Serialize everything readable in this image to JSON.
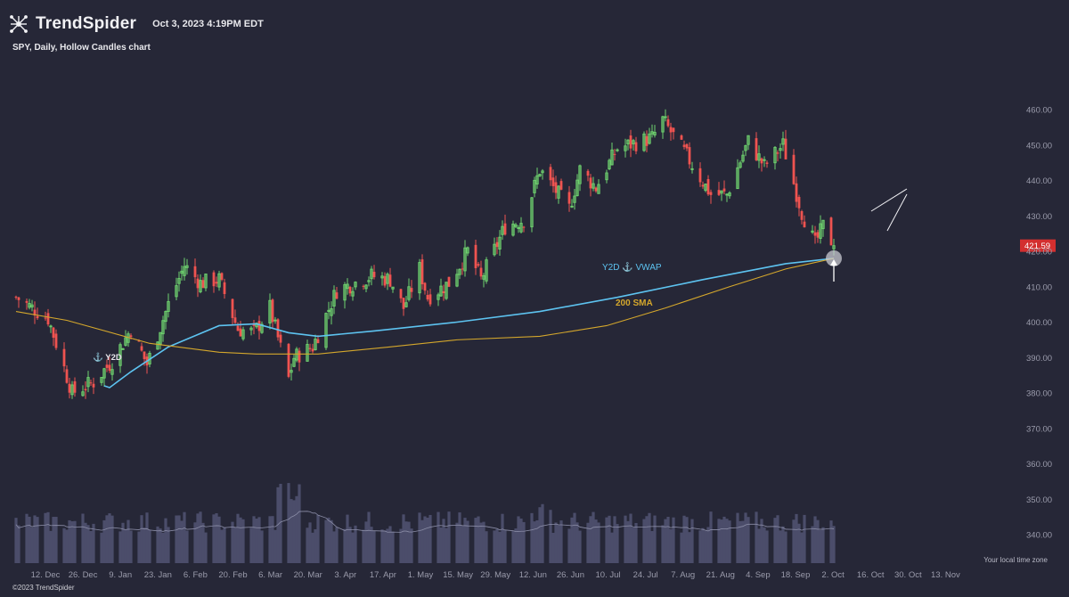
{
  "header": {
    "brand": "TrendSpider",
    "timestamp": "Oct 3, 2023 4:19PM EDT",
    "logo_icon": "spider-logo-icon"
  },
  "chart_title": "SPY, Daily, Hollow Candles chart",
  "footer": {
    "copyright": "©2023 TrendSpider",
    "timezone_note": "Your local time zone"
  },
  "chart_data": {
    "type": "candlestick",
    "symbol": "SPY",
    "timeframe": "Daily",
    "style": "Hollow Candles",
    "y_ticks": [
      460,
      450,
      440,
      430,
      420,
      410,
      400,
      390,
      380,
      370,
      360,
      350,
      340
    ],
    "ylim": [
      335,
      464
    ],
    "x_ticks": [
      "12. Dec",
      "26. Dec",
      "9. Jan",
      "23. Jan",
      "6. Feb",
      "20. Feb",
      "6. Mar",
      "20. Mar",
      "3. Apr",
      "17. Apr",
      "1. May",
      "15. May",
      "29. May",
      "12. Jun",
      "26. Jun",
      "10. Jul",
      "24. Jul",
      "7. Aug",
      "21. Aug",
      "4. Sep",
      "18. Sep",
      "2. Oct",
      "16. Oct",
      "30. Oct",
      "13. Nov"
    ],
    "last_price": "421.59",
    "last_price_color": "#d32f2f",
    "bull_color": "#6fd36f",
    "bear_color": "#ef5350",
    "close_anchors": [
      {
        "date": "2022-12-01",
        "close": 407
      },
      {
        "date": "2022-12-13",
        "close": 401
      },
      {
        "date": "2022-12-22",
        "close": 380
      },
      {
        "date": "2022-12-30",
        "close": 383
      },
      {
        "date": "2023-01-06",
        "close": 389
      },
      {
        "date": "2023-01-13",
        "close": 398
      },
      {
        "date": "2023-01-19",
        "close": 388
      },
      {
        "date": "2023-01-27",
        "close": 405
      },
      {
        "date": "2023-02-02",
        "close": 416
      },
      {
        "date": "2023-02-08",
        "close": 411
      },
      {
        "date": "2023-02-15",
        "close": 412
      },
      {
        "date": "2023-02-22",
        "close": 398
      },
      {
        "date": "2023-02-28",
        "close": 397
      },
      {
        "date": "2023-03-06",
        "close": 404
      },
      {
        "date": "2023-03-13",
        "close": 384
      },
      {
        "date": "2023-03-15",
        "close": 390
      },
      {
        "date": "2023-03-22",
        "close": 393
      },
      {
        "date": "2023-03-31",
        "close": 409
      },
      {
        "date": "2023-04-13",
        "close": 413
      },
      {
        "date": "2023-04-20",
        "close": 412
      },
      {
        "date": "2023-04-25",
        "close": 404
      },
      {
        "date": "2023-05-01",
        "close": 415
      },
      {
        "date": "2023-05-04",
        "close": 407
      },
      {
        "date": "2023-05-12",
        "close": 411
      },
      {
        "date": "2023-05-19",
        "close": 420
      },
      {
        "date": "2023-05-24",
        "close": 412
      },
      {
        "date": "2023-06-02",
        "close": 427
      },
      {
        "date": "2023-06-09",
        "close": 429
      },
      {
        "date": "2023-06-15",
        "close": 443
      },
      {
        "date": "2023-06-26",
        "close": 432
      },
      {
        "date": "2023-06-30",
        "close": 443
      },
      {
        "date": "2023-07-06",
        "close": 438
      },
      {
        "date": "2023-07-14",
        "close": 449
      },
      {
        "date": "2023-07-27",
        "close": 452
      },
      {
        "date": "2023-07-31",
        "close": 457
      },
      {
        "date": "2023-08-08",
        "close": 448
      },
      {
        "date": "2023-08-18",
        "close": 436
      },
      {
        "date": "2023-08-24",
        "close": 436
      },
      {
        "date": "2023-09-01",
        "close": 451
      },
      {
        "date": "2023-09-07",
        "close": 444
      },
      {
        "date": "2023-09-14",
        "close": 450
      },
      {
        "date": "2023-09-21",
        "close": 431
      },
      {
        "date": "2023-09-26",
        "close": 422
      },
      {
        "date": "2023-09-29",
        "close": 427
      },
      {
        "date": "2023-10-03",
        "close": 421.59
      }
    ],
    "series": [
      {
        "name": "Y2D ⚓ VWAP",
        "color": "#5dc3f0",
        "label": "Y2D ⚓ VWAP",
        "points": [
          {
            "date": "2023-01-03",
            "value": 382
          },
          {
            "date": "2023-01-05",
            "value": 381.5
          },
          {
            "date": "2023-01-13",
            "value": 386
          },
          {
            "date": "2023-01-27",
            "value": 393
          },
          {
            "date": "2023-02-15",
            "value": 399
          },
          {
            "date": "2023-03-01",
            "value": 399.5
          },
          {
            "date": "2023-03-13",
            "value": 397
          },
          {
            "date": "2023-03-24",
            "value": 396
          },
          {
            "date": "2023-04-14",
            "value": 397.5
          },
          {
            "date": "2023-05-15",
            "value": 400
          },
          {
            "date": "2023-06-15",
            "value": 403
          },
          {
            "date": "2023-07-14",
            "value": 407
          },
          {
            "date": "2023-08-15",
            "value": 412
          },
          {
            "date": "2023-09-15",
            "value": 416.5
          },
          {
            "date": "2023-10-03",
            "value": 418
          }
        ]
      },
      {
        "name": "200 SMA",
        "color": "#d4a72c",
        "label": "200 SMA",
        "points": [
          {
            "date": "2022-12-01",
            "value": 403
          },
          {
            "date": "2022-12-20",
            "value": 400.5
          },
          {
            "date": "2023-01-20",
            "value": 394
          },
          {
            "date": "2023-02-15",
            "value": 391.5
          },
          {
            "date": "2023-03-01",
            "value": 391
          },
          {
            "date": "2023-03-24",
            "value": 391
          },
          {
            "date": "2023-04-20",
            "value": 393
          },
          {
            "date": "2023-05-15",
            "value": 395
          },
          {
            "date": "2023-06-15",
            "value": 396
          },
          {
            "date": "2023-07-10",
            "value": 399
          },
          {
            "date": "2023-08-01",
            "value": 404
          },
          {
            "date": "2023-08-25",
            "value": 410
          },
          {
            "date": "2023-09-15",
            "value": 415
          },
          {
            "date": "2023-10-03",
            "value": 418
          }
        ]
      }
    ],
    "volume_colors": {
      "bar": "#4b4d6a",
      "line": "#8a8ca6"
    },
    "annotations": [
      {
        "type": "anchor_marker",
        "label": "Y2D",
        "date": "2023-01-03"
      },
      {
        "type": "wedge",
        "desc": "rising wedge",
        "start": "2023-09-22",
        "end": "2023-10-02"
      },
      {
        "type": "circle",
        "date": "2023-10-03",
        "value": 418
      },
      {
        "type": "arrow-up",
        "date": "2023-10-03"
      }
    ]
  }
}
